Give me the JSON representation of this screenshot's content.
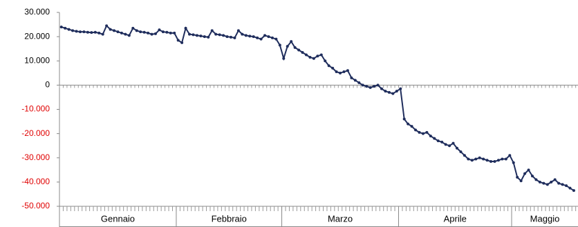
{
  "chart_data": {
    "type": "line",
    "categories": [
      "Gennaio",
      "Febbraio",
      "Marzo",
      "Aprile",
      "Maggio"
    ],
    "values": [
      [
        24000,
        23500,
        23000,
        22500,
        22200,
        22000,
        22000,
        21800,
        21700,
        21800,
        21500,
        21000,
        24500,
        23000,
        22500,
        22000,
        21500,
        21000,
        20500,
        23500,
        22500,
        22000,
        21800,
        21500,
        21000,
        21200,
        22800,
        22000,
        21800,
        21500,
        21500
      ],
      [
        18500,
        17500,
        23500,
        21000,
        20800,
        20500,
        20300,
        20000,
        19800,
        22500,
        21000,
        20800,
        20500,
        20000,
        19800,
        19500,
        22500,
        21000,
        20500,
        20200,
        20000,
        19500,
        19000,
        20500,
        20000,
        19500,
        19000,
        16500
      ],
      [
        11000,
        16000,
        18000,
        15500,
        14500,
        13500,
        12500,
        11500,
        11000,
        12000,
        12500,
        10000,
        8000,
        7000,
        5500,
        5000,
        5500,
        6000,
        3000,
        2000,
        1000,
        0,
        -500,
        -1000,
        -500,
        0,
        -1500,
        -2500,
        -3000,
        -3500,
        -2500
      ],
      [
        -1500,
        -14000,
        -16000,
        -17000,
        -18500,
        -19500,
        -20000,
        -19500,
        -21000,
        -22000,
        -23000,
        -23500,
        -24500,
        -25000,
        -24000,
        -26000,
        -27500,
        -29000,
        -30500,
        -31000,
        -30500,
        -30000,
        -30500,
        -31000,
        -31500,
        -31500,
        -31000,
        -30500,
        -30500,
        -29000
      ],
      [
        -32000,
        -38000,
        -39500,
        -36500,
        -35000,
        -37500,
        -39000,
        -40000,
        -40500,
        -41000,
        -40000,
        -39000,
        -40500,
        -41000,
        -41500,
        -42500,
        -43500
      ]
    ],
    "color": "#1f2d5c",
    "negative_color": "#e00000",
    "ylim": [
      -50000,
      30000
    ],
    "yticks": [
      {
        "value": -50000,
        "label": "-50.000"
      },
      {
        "value": -40000,
        "label": "-40.000"
      },
      {
        "value": -30000,
        "label": "-30.000"
      },
      {
        "value": -20000,
        "label": "-20.000"
      },
      {
        "value": -10000,
        "label": "-10.000"
      },
      0,
      {
        "value": 10000,
        "label": "10.000"
      },
      {
        "value": 20000,
        "label": "20.000"
      },
      {
        "value": 30000,
        "label": "30.000"
      }
    ]
  }
}
